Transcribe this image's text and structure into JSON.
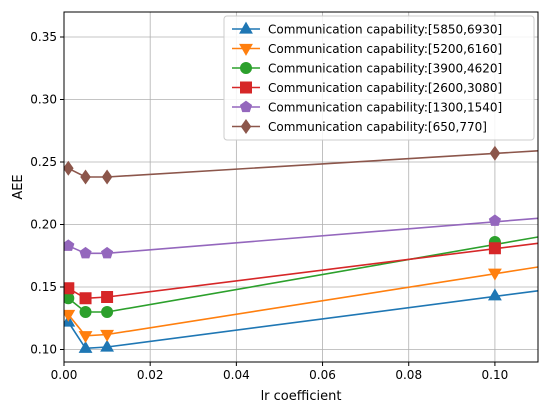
{
  "chart_data": {
    "type": "line",
    "title": "",
    "xlabel": "lr coefficient",
    "ylabel": "AEE",
    "xlim": [
      0,
      0.11
    ],
    "ylim": [
      0.09,
      0.37
    ],
    "x_ticks": [
      0.0,
      0.02,
      0.04,
      0.06,
      0.08,
      0.1
    ],
    "x_tick_labels": [
      "0.00",
      "0.02",
      "0.04",
      "0.06",
      "0.08",
      "0.10"
    ],
    "y_ticks": [
      0.1,
      0.15,
      0.2,
      0.25,
      0.3,
      0.35
    ],
    "y_tick_labels": [
      "0.10",
      "0.15",
      "0.20",
      "0.25",
      "0.30",
      "0.35"
    ],
    "grid": true,
    "legend_position": "top-right",
    "series": [
      {
        "name": "Communication capability:[5850,6930]",
        "color": "#1f77b4",
        "marker": "triangle-up",
        "markers": [
          {
            "x": 0.001,
            "y": 0.122
          },
          {
            "x": 0.005,
            "y": 0.101
          },
          {
            "x": 0.01,
            "y": 0.102
          },
          {
            "x": 0.1,
            "y": 0.143
          }
        ],
        "trend": [
          {
            "x": 0.001,
            "y": 0.122
          },
          {
            "x": 0.005,
            "y": 0.101
          },
          {
            "x": 0.01,
            "y": 0.102
          },
          {
            "x": 0.11,
            "y": 0.147
          }
        ]
      },
      {
        "name": "Communication capability:[5200,6160]",
        "color": "#ff7f0e",
        "marker": "triangle-down",
        "markers": [
          {
            "x": 0.001,
            "y": 0.128
          },
          {
            "x": 0.005,
            "y": 0.111
          },
          {
            "x": 0.01,
            "y": 0.112
          },
          {
            "x": 0.1,
            "y": 0.161
          }
        ],
        "trend": [
          {
            "x": 0.001,
            "y": 0.128
          },
          {
            "x": 0.005,
            "y": 0.111
          },
          {
            "x": 0.01,
            "y": 0.112
          },
          {
            "x": 0.11,
            "y": 0.166
          }
        ]
      },
      {
        "name": "Communication capability:[3900,4620]",
        "color": "#2ca02c",
        "marker": "circle",
        "markers": [
          {
            "x": 0.001,
            "y": 0.141
          },
          {
            "x": 0.005,
            "y": 0.13
          },
          {
            "x": 0.01,
            "y": 0.13
          },
          {
            "x": 0.1,
            "y": 0.186
          }
        ],
        "trend": [
          {
            "x": 0.001,
            "y": 0.141
          },
          {
            "x": 0.005,
            "y": 0.13
          },
          {
            "x": 0.01,
            "y": 0.13
          },
          {
            "x": 0.11,
            "y": 0.19
          }
        ]
      },
      {
        "name": "Communication capability:[2600,3080]",
        "color": "#d62728",
        "marker": "square",
        "markers": [
          {
            "x": 0.001,
            "y": 0.149
          },
          {
            "x": 0.005,
            "y": 0.141
          },
          {
            "x": 0.01,
            "y": 0.142
          },
          {
            "x": 0.1,
            "y": 0.181
          }
        ],
        "trend": [
          {
            "x": 0.001,
            "y": 0.149
          },
          {
            "x": 0.005,
            "y": 0.141
          },
          {
            "x": 0.01,
            "y": 0.142
          },
          {
            "x": 0.11,
            "y": 0.185
          }
        ]
      },
      {
        "name": "Communication capability:[1300,1540]",
        "color": "#9467bd",
        "marker": "pentagon",
        "markers": [
          {
            "x": 0.001,
            "y": 0.183
          },
          {
            "x": 0.005,
            "y": 0.177
          },
          {
            "x": 0.01,
            "y": 0.177
          },
          {
            "x": 0.1,
            "y": 0.203
          }
        ],
        "trend": [
          {
            "x": 0.001,
            "y": 0.183
          },
          {
            "x": 0.005,
            "y": 0.177
          },
          {
            "x": 0.01,
            "y": 0.177
          },
          {
            "x": 0.11,
            "y": 0.205
          }
        ]
      },
      {
        "name": "Communication capability:[650,770]",
        "color": "#8c564b",
        "marker": "diamond",
        "markers": [
          {
            "x": 0.001,
            "y": 0.245
          },
          {
            "x": 0.005,
            "y": 0.238
          },
          {
            "x": 0.01,
            "y": 0.238
          },
          {
            "x": 0.1,
            "y": 0.257
          }
        ],
        "trend": [
          {
            "x": 0.001,
            "y": 0.245
          },
          {
            "x": 0.005,
            "y": 0.238
          },
          {
            "x": 0.01,
            "y": 0.238
          },
          {
            "x": 0.11,
            "y": 0.259
          }
        ]
      }
    ]
  }
}
